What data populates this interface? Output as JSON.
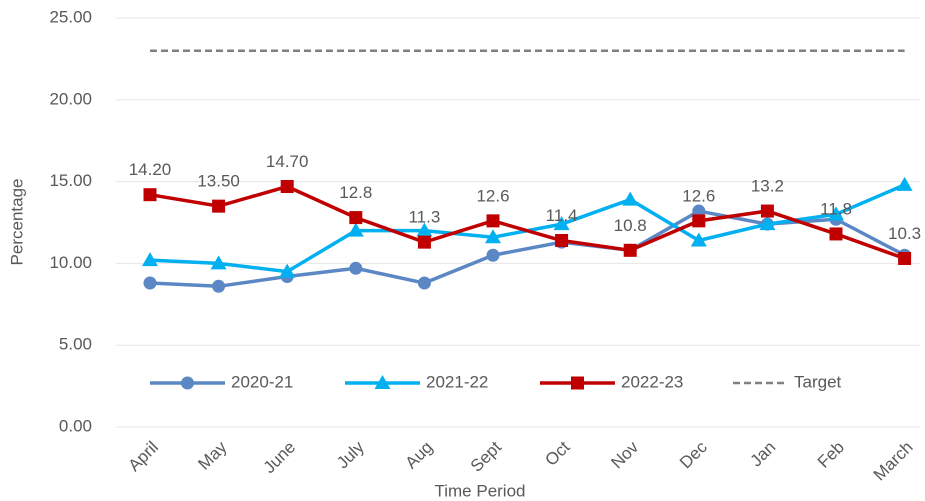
{
  "chart_data": {
    "type": "line",
    "x_label": "Time Period",
    "y_label": "Percentage",
    "categories": [
      "April",
      "May",
      "June",
      "July",
      "Aug",
      "Sept",
      "Oct",
      "Nov",
      "Dec",
      "Jan",
      "Feb",
      "March"
    ],
    "series": [
      {
        "name": "2020-21",
        "color": "#5b87c5",
        "marker": "circle",
        "values": [
          8.8,
          8.6,
          9.2,
          9.7,
          8.8,
          10.5,
          11.3,
          10.8,
          13.2,
          12.4,
          12.7,
          10.5
        ]
      },
      {
        "name": "2021-22",
        "color": "#00b0f0",
        "marker": "triangle",
        "values": [
          10.2,
          10.0,
          9.5,
          12.0,
          12.0,
          11.6,
          12.4,
          13.9,
          11.4,
          12.4,
          13.0,
          14.8
        ]
      },
      {
        "name": "2022-23",
        "color": "#c00000",
        "marker": "square",
        "values": [
          14.2,
          13.5,
          14.7,
          12.8,
          11.3,
          12.6,
          11.4,
          10.8,
          12.6,
          13.2,
          11.8,
          10.3
        ],
        "value_labels": [
          "14.20",
          "13.50",
          "14.70",
          "12.8",
          "11.3",
          "12.6",
          "11.4",
          "10.8",
          "12.6",
          "13.2",
          "11.8",
          "10.3"
        ]
      },
      {
        "name": "Target",
        "color": "#808080",
        "marker": "none",
        "dashed": true,
        "values": [
          23,
          23,
          23,
          23,
          23,
          23,
          23,
          23,
          23,
          23,
          23,
          23
        ]
      }
    ],
    "ylim": [
      0,
      25
    ],
    "yticks": [
      {
        "value": 0,
        "label": "0.00"
      },
      {
        "value": 5,
        "label": "5.00"
      },
      {
        "value": 10,
        "label": "10.00"
      },
      {
        "value": 15,
        "label": "15.00"
      },
      {
        "value": 20,
        "label": "20.00"
      },
      {
        "value": 25,
        "label": "25.00"
      }
    ],
    "grid": true,
    "legend": "bottom"
  }
}
